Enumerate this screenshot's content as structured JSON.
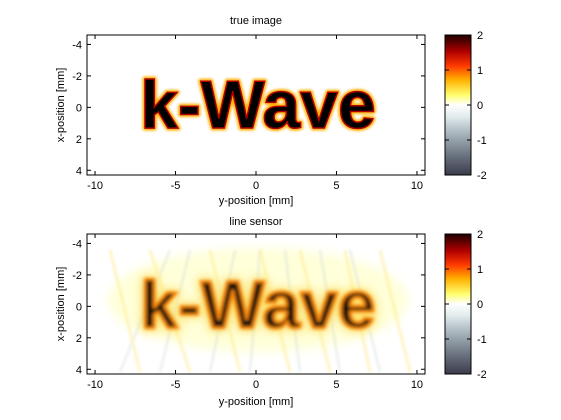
{
  "figure": {
    "colorbar_gradient": [
      {
        "stop": 0.0,
        "color": "#3b3b4a"
      },
      {
        "stop": 0.15,
        "color": "#6e7783"
      },
      {
        "stop": 0.3,
        "color": "#a9b6bd"
      },
      {
        "stop": 0.42,
        "color": "#e3ecee"
      },
      {
        "stop": 0.5,
        "color": "#ffffff"
      },
      {
        "stop": 0.57,
        "color": "#ffff70"
      },
      {
        "stop": 0.68,
        "color": "#ffb000"
      },
      {
        "stop": 0.78,
        "color": "#ff3a00"
      },
      {
        "stop": 0.88,
        "color": "#b00000"
      },
      {
        "stop": 1.0,
        "color": "#1e0000"
      }
    ]
  },
  "chart_data": [
    {
      "type": "heatmap",
      "title": "true image",
      "xlabel": "y-position [mm]",
      "ylabel": "x-position [mm]",
      "xlim": [
        -10.5,
        10.5
      ],
      "ylim": [
        4.3,
        -4.6
      ],
      "x_ticks": [
        "-10",
        "-5",
        "0",
        "5",
        "10"
      ],
      "x_tick_values": [
        -10,
        -5,
        0,
        5,
        10
      ],
      "y_ticks": [
        "-4",
        "-2",
        "0",
        "2",
        "4"
      ],
      "y_tick_values": [
        -4,
        -2,
        0,
        2,
        4
      ],
      "colorbar": {
        "ticks": [
          "2",
          "1",
          "0",
          "-1",
          "-2"
        ],
        "tick_values": [
          2,
          1,
          0,
          -1,
          -2
        ],
        "clim": [
          -2,
          2
        ]
      },
      "image_text": "k-Wave",
      "image_value": 2,
      "background_value": 0
    },
    {
      "type": "heatmap",
      "title": "line sensor",
      "xlabel": "y-position [mm]",
      "ylabel": "x-position [mm]",
      "xlim": [
        -10.5,
        10.5
      ],
      "ylim": [
        4.3,
        -4.6
      ],
      "x_ticks": [
        "-10",
        "-5",
        "0",
        "5",
        "10"
      ],
      "x_tick_values": [
        -10,
        -5,
        0,
        5,
        10
      ],
      "y_ticks": [
        "-4",
        "-2",
        "0",
        "2",
        "4"
      ],
      "y_tick_values": [
        -4,
        -2,
        0,
        2,
        4
      ],
      "colorbar": {
        "ticks": [
          "2",
          "1",
          "0",
          "-1",
          "-2"
        ],
        "tick_values": [
          2,
          1,
          0,
          -1,
          -2
        ],
        "clim": [
          -2,
          2
        ]
      },
      "image_text": "k-Wave",
      "image_value": 1.3,
      "background_value": 0.3
    }
  ]
}
